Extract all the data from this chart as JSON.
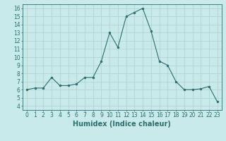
{
  "x": [
    0,
    1,
    2,
    3,
    4,
    5,
    6,
    7,
    8,
    9,
    10,
    11,
    12,
    13,
    14,
    15,
    16,
    17,
    18,
    19,
    20,
    21,
    22,
    23
  ],
  "y": [
    6,
    6.2,
    6.2,
    7.5,
    6.5,
    6.5,
    6.7,
    7.5,
    7.5,
    9.5,
    13,
    11.2,
    15,
    15.5,
    16,
    13.2,
    9.5,
    9,
    7,
    6,
    6,
    6.1,
    6.4,
    4.5
  ],
  "line_color": "#2d6e6e",
  "marker": "o",
  "marker_size": 2,
  "bg_color": "#c8eaea",
  "grid_color": "#b0d0d0",
  "xlabel": "Humidex (Indice chaleur)",
  "xlim": [
    -0.5,
    23.5
  ],
  "ylim": [
    3.5,
    16.5
  ],
  "yticks": [
    4,
    5,
    6,
    7,
    8,
    9,
    10,
    11,
    12,
    13,
    14,
    15,
    16
  ],
  "xticks": [
    0,
    1,
    2,
    3,
    4,
    5,
    6,
    7,
    8,
    9,
    10,
    11,
    12,
    13,
    14,
    15,
    16,
    17,
    18,
    19,
    20,
    21,
    22,
    23
  ],
  "tick_fontsize": 5.5,
  "label_fontsize": 7
}
